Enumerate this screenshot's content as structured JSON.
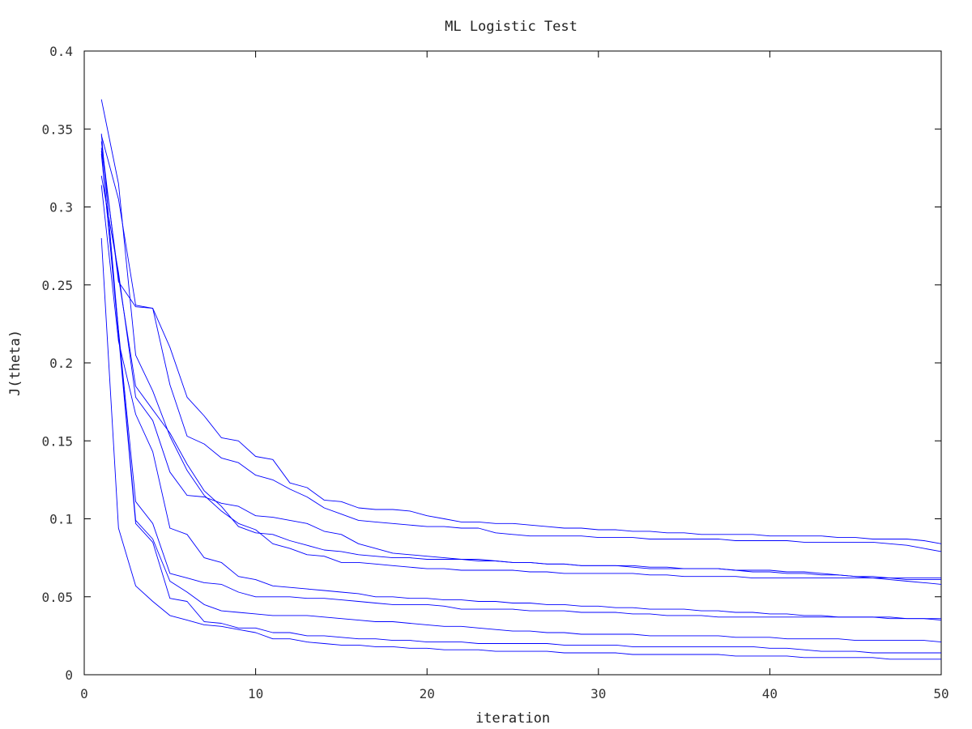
{
  "chart_data": {
    "type": "line",
    "title": "ML Logistic Test",
    "xlabel": "iteration",
    "ylabel": "J(theta)",
    "xlim": [
      0,
      50
    ],
    "ylim": [
      0,
      0.4
    ],
    "x_ticks": [
      0,
      10,
      20,
      30,
      40,
      50
    ],
    "y_ticks": [
      0,
      0.05,
      0.1,
      0.15,
      0.2,
      0.25,
      0.3,
      0.35,
      0.4
    ],
    "x_tick_labels": [
      "0",
      "10",
      "20",
      "30",
      "40",
      "50"
    ],
    "y_tick_labels": [
      "0",
      "0.05",
      "0.1",
      "0.15",
      "0.2",
      "0.25",
      "0.3",
      "0.35",
      "0.4"
    ],
    "grid": false,
    "legend": "none",
    "line_color": "#0000ff",
    "x": [
      1,
      2,
      3,
      4,
      5,
      6,
      7,
      8,
      9,
      10,
      11,
      12,
      13,
      14,
      15,
      16,
      17,
      18,
      19,
      20,
      21,
      22,
      23,
      24,
      25,
      26,
      27,
      28,
      29,
      30,
      31,
      32,
      33,
      34,
      35,
      36,
      37,
      38,
      39,
      40,
      41,
      42,
      43,
      44,
      45,
      46,
      47,
      48,
      49,
      50
    ],
    "series": [
      {
        "values": [
          0.369,
          0.315,
          0.205,
          0.182,
          0.153,
          0.131,
          0.115,
          0.105,
          0.097,
          0.093,
          0.084,
          0.081,
          0.077,
          0.076,
          0.072,
          0.072,
          0.071,
          0.07,
          0.069,
          0.068,
          0.068,
          0.067,
          0.067,
          0.067,
          0.067,
          0.066,
          0.066,
          0.065,
          0.065,
          0.065,
          0.065,
          0.065,
          0.064,
          0.064,
          0.063,
          0.063,
          0.063,
          0.063,
          0.062,
          0.062,
          0.062,
          0.062,
          0.062,
          0.062,
          0.062,
          0.062,
          0.062,
          0.062,
          0.062,
          0.062
        ]
      },
      {
        "values": [
          0.346,
          0.305,
          0.237,
          0.235,
          0.21,
          0.178,
          0.166,
          0.152,
          0.15,
          0.14,
          0.138,
          0.123,
          0.12,
          0.112,
          0.111,
          0.107,
          0.106,
          0.106,
          0.105,
          0.102,
          0.1,
          0.098,
          0.098,
          0.097,
          0.097,
          0.096,
          0.095,
          0.094,
          0.094,
          0.093,
          0.093,
          0.092,
          0.092,
          0.091,
          0.091,
          0.09,
          0.09,
          0.09,
          0.09,
          0.089,
          0.089,
          0.089,
          0.089,
          0.088,
          0.088,
          0.087,
          0.087,
          0.087,
          0.086,
          0.084
        ]
      },
      {
        "values": [
          0.342,
          0.252,
          0.236,
          0.235,
          0.186,
          0.153,
          0.148,
          0.139,
          0.136,
          0.128,
          0.125,
          0.119,
          0.114,
          0.107,
          0.103,
          0.099,
          0.098,
          0.097,
          0.096,
          0.095,
          0.095,
          0.094,
          0.094,
          0.091,
          0.09,
          0.089,
          0.089,
          0.089,
          0.089,
          0.088,
          0.088,
          0.088,
          0.087,
          0.087,
          0.087,
          0.087,
          0.087,
          0.086,
          0.086,
          0.086,
          0.086,
          0.085,
          0.085,
          0.085,
          0.085,
          0.085,
          0.084,
          0.083,
          0.081,
          0.079
        ]
      },
      {
        "values": [
          0.338,
          0.255,
          0.185,
          0.17,
          0.155,
          0.135,
          0.118,
          0.108,
          0.095,
          0.091,
          0.09,
          0.086,
          0.083,
          0.08,
          0.079,
          0.077,
          0.076,
          0.075,
          0.075,
          0.074,
          0.074,
          0.074,
          0.073,
          0.073,
          0.072,
          0.072,
          0.071,
          0.071,
          0.07,
          0.07,
          0.07,
          0.07,
          0.069,
          0.069,
          0.068,
          0.068,
          0.068,
          0.067,
          0.066,
          0.066,
          0.065,
          0.065,
          0.064,
          0.064,
          0.063,
          0.063,
          0.062,
          0.061,
          0.061,
          0.061
        ]
      },
      {
        "values": [
          0.32,
          0.258,
          0.178,
          0.163,
          0.13,
          0.115,
          0.114,
          0.11,
          0.108,
          0.102,
          0.101,
          0.099,
          0.097,
          0.092,
          0.09,
          0.084,
          0.081,
          0.078,
          0.077,
          0.076,
          0.075,
          0.074,
          0.074,
          0.073,
          0.072,
          0.072,
          0.071,
          0.071,
          0.07,
          0.07,
          0.07,
          0.069,
          0.068,
          0.068,
          0.068,
          0.068,
          0.068,
          0.067,
          0.067,
          0.067,
          0.066,
          0.066,
          0.065,
          0.064,
          0.063,
          0.062,
          0.061,
          0.06,
          0.059,
          0.058
        ]
      },
      {
        "values": [
          0.314,
          0.214,
          0.167,
          0.143,
          0.094,
          0.09,
          0.075,
          0.072,
          0.063,
          0.061,
          0.057,
          0.056,
          0.055,
          0.054,
          0.053,
          0.052,
          0.05,
          0.05,
          0.049,
          0.049,
          0.048,
          0.048,
          0.047,
          0.047,
          0.046,
          0.046,
          0.045,
          0.045,
          0.044,
          0.044,
          0.043,
          0.043,
          0.042,
          0.042,
          0.042,
          0.041,
          0.041,
          0.04,
          0.04,
          0.039,
          0.039,
          0.038,
          0.038,
          0.037,
          0.037,
          0.037,
          0.037,
          0.036,
          0.036,
          0.036
        ]
      },
      {
        "values": [
          0.334,
          0.221,
          0.111,
          0.097,
          0.065,
          0.062,
          0.059,
          0.058,
          0.053,
          0.05,
          0.05,
          0.05,
          0.049,
          0.049,
          0.048,
          0.047,
          0.046,
          0.045,
          0.045,
          0.045,
          0.044,
          0.042,
          0.042,
          0.042,
          0.042,
          0.041,
          0.041,
          0.041,
          0.04,
          0.04,
          0.04,
          0.039,
          0.039,
          0.038,
          0.038,
          0.038,
          0.037,
          0.037,
          0.037,
          0.037,
          0.037,
          0.037,
          0.037,
          0.037,
          0.037,
          0.037,
          0.036,
          0.036,
          0.036,
          0.035
        ]
      },
      {
        "values": [
          0.347,
          0.22,
          0.099,
          0.087,
          0.06,
          0.053,
          0.045,
          0.041,
          0.04,
          0.039,
          0.038,
          0.038,
          0.038,
          0.037,
          0.036,
          0.035,
          0.034,
          0.034,
          0.033,
          0.032,
          0.031,
          0.031,
          0.03,
          0.029,
          0.028,
          0.028,
          0.027,
          0.027,
          0.026,
          0.026,
          0.026,
          0.026,
          0.025,
          0.025,
          0.025,
          0.025,
          0.025,
          0.024,
          0.024,
          0.024,
          0.023,
          0.023,
          0.023,
          0.023,
          0.022,
          0.022,
          0.022,
          0.022,
          0.022,
          0.021
        ]
      },
      {
        "values": [
          0.336,
          0.218,
          0.097,
          0.085,
          0.049,
          0.047,
          0.034,
          0.033,
          0.03,
          0.03,
          0.027,
          0.027,
          0.025,
          0.025,
          0.024,
          0.023,
          0.023,
          0.022,
          0.022,
          0.021,
          0.021,
          0.021,
          0.02,
          0.02,
          0.02,
          0.02,
          0.02,
          0.019,
          0.019,
          0.019,
          0.019,
          0.018,
          0.018,
          0.018,
          0.018,
          0.018,
          0.018,
          0.018,
          0.018,
          0.017,
          0.017,
          0.016,
          0.015,
          0.015,
          0.015,
          0.014,
          0.014,
          0.014,
          0.014,
          0.014
        ]
      },
      {
        "values": [
          0.28,
          0.094,
          0.057,
          0.047,
          0.038,
          0.035,
          0.032,
          0.031,
          0.029,
          0.027,
          0.023,
          0.023,
          0.021,
          0.02,
          0.019,
          0.019,
          0.018,
          0.018,
          0.017,
          0.017,
          0.016,
          0.016,
          0.016,
          0.015,
          0.015,
          0.015,
          0.015,
          0.014,
          0.014,
          0.014,
          0.014,
          0.013,
          0.013,
          0.013,
          0.013,
          0.013,
          0.013,
          0.012,
          0.012,
          0.012,
          0.012,
          0.011,
          0.011,
          0.011,
          0.011,
          0.011,
          0.01,
          0.01,
          0.01,
          0.01
        ]
      }
    ]
  }
}
